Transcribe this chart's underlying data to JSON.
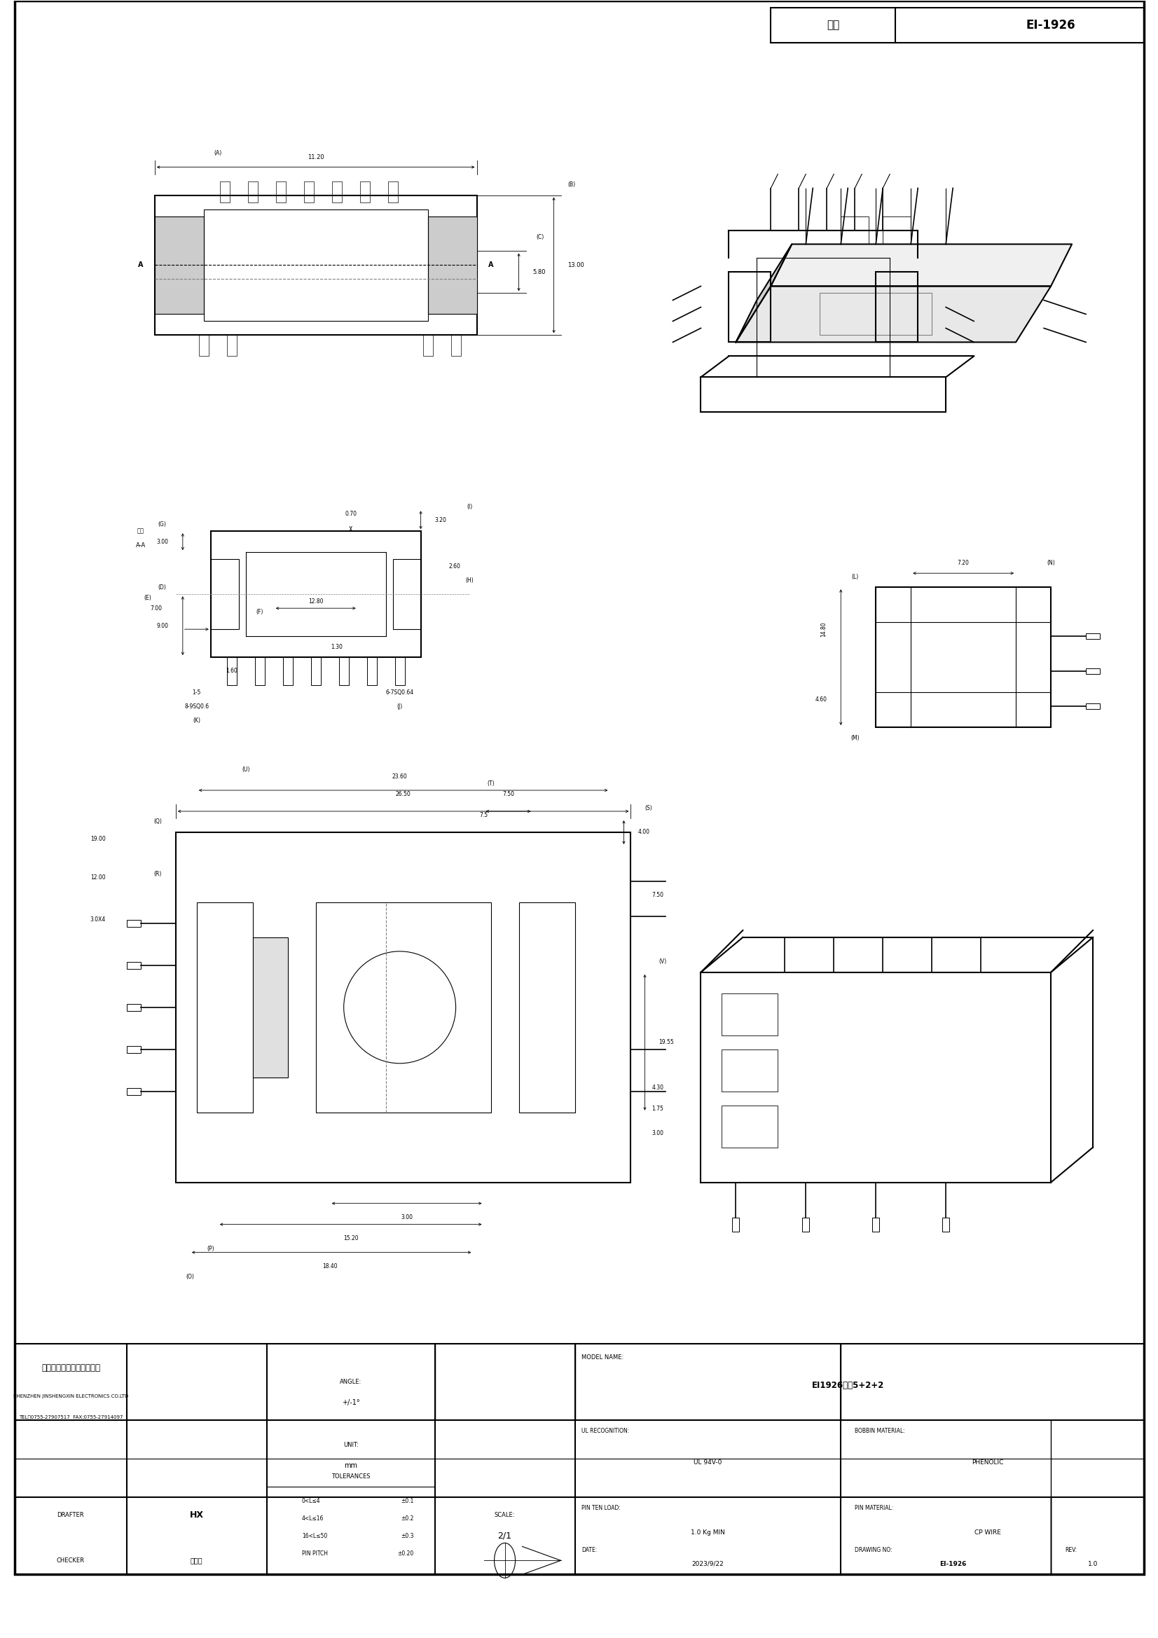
{
  "page_width": 16.53,
  "page_height": 23.38,
  "bg_color": "#ffffff",
  "border_color": "#000000",
  "line_color": "#000000",
  "title_box": {
    "label_cn": "型号",
    "value": "EI-1926"
  },
  "company": {
    "name_cn": "深圳市金盛鑫科技有限公司",
    "name_en": "SHENZHEN JINSHENGXIN ELECTRONICS CO.LTD",
    "tel": "TEL：0755-27907517  FAX:0755-27914097"
  },
  "info_table": {
    "angle": "ANGLE:\n+/-1°",
    "unit": "UNIT:\nmm",
    "model_name_label": "MODEL NAME:",
    "model_name": "EI1926立式5+2+2",
    "ul_recognition_label": "UL RECOGNITION:",
    "ul_recognition": "UL 94V-0",
    "bobbin_material_label": "BOBBIN MATERIAL:",
    "bobbin_material": "PHENOLIC",
    "scale_label": "SCALE:",
    "scale": "2/1",
    "pin_ten_load_label": "PIN TEN LOAD:",
    "pin_ten_load": "1.0 Kg MIN",
    "pin_material_label": "PIN MATERIAL:",
    "pin_material": "CP WIRE",
    "drafter_label": "DRAFTER",
    "drafter": "HX",
    "checker_label": "CHECKER",
    "checker": "杨柏林",
    "tolerances_label": "TOLERANCES",
    "tol1": "0<L≤4      ±0.1",
    "tol2": "4<L≤16    ±0.2",
    "tol3": "16<L≤50  ±0.3",
    "tol4": "PIN PITCH  ±0.20",
    "date_label": "DATE:",
    "date": "2023/9/22",
    "drawing_no_label": "DRAWING NO:",
    "drawing_no": "EI-1926",
    "rev_label": "REV:",
    "rev": "1.0"
  },
  "view_labels": {
    "section_aa": "截面\nA-A",
    "label_A": "(A)",
    "label_B": "(B)",
    "label_C": "(C)",
    "label_D": "(D)",
    "label_E": "(E)",
    "label_F": "(F)",
    "label_G": "(G)",
    "label_H": "(H)",
    "label_I": "(I)",
    "label_J": "(J)",
    "label_K": "(K)",
    "label_L": "(L)",
    "label_M": "(M)",
    "label_N": "(N)",
    "label_O": "(O)",
    "label_P": "(P)",
    "label_Q": "(Q)",
    "label_R": "(R)",
    "label_S": "(S)",
    "label_T": "(T)",
    "label_U": "(U)",
    "label_V": "(V)"
  },
  "dims": {
    "top_view_width": "11.20",
    "top_view_c": "5.80",
    "top_view_b": "13.00",
    "section_i": "3.20",
    "section_070": "0.70",
    "section_1280": "12.80",
    "section_260": "2.60",
    "section_d_900": "9.00",
    "section_e_700": "7.00",
    "section_g_300": "3.00",
    "section_160": "1.60",
    "section_130": "1.30",
    "section_15": "1-5",
    "section_89": "8-9SQ0.6",
    "section_67": "6-7SQ0.64",
    "right_side_l": "14.80",
    "right_side_460": "4.60",
    "right_side_720": "7.20",
    "bottom_t": "26.50",
    "bottom_u": "23.60",
    "bottom_750": "7.50",
    "bottom_s": "4.00",
    "bottom_750b": "7.50",
    "bottom_v": "19.55",
    "bottom_430": "4.30",
    "bottom_175": "1.75",
    "bottom_300a": "3.00",
    "bottom_300b": "3.00",
    "bottom_1200": "12.00",
    "bottom_1900": "19.00",
    "bottom_r": "3.0X4",
    "bottom_p": "15.20",
    "bottom_o": "18.40",
    "bottom_75": "7.5"
  }
}
